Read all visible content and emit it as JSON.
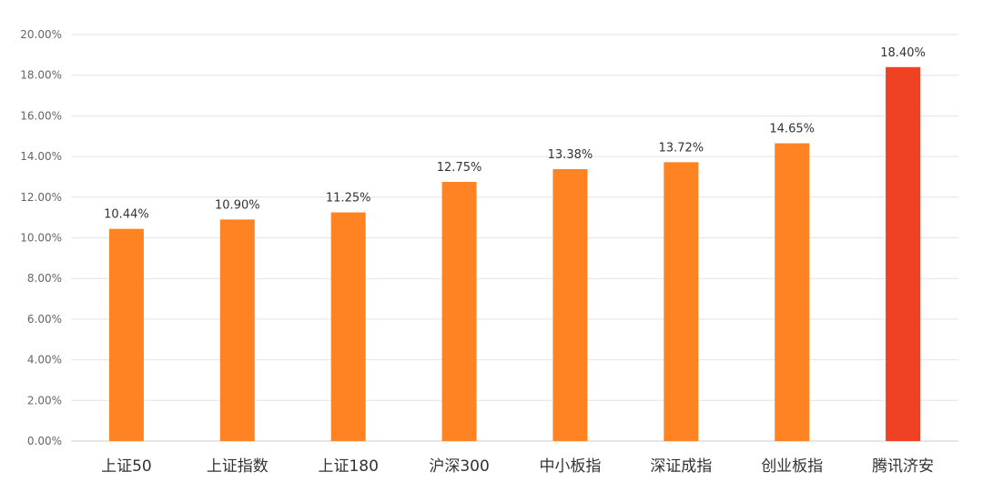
{
  "chart_data": {
    "type": "bar",
    "categories": [
      "上证50",
      "上证指数",
      "上证180",
      "沪深300",
      "中小板指",
      "深证成指",
      "创业板指",
      "腾讯济安"
    ],
    "values": [
      10.44,
      10.9,
      11.25,
      12.75,
      13.38,
      13.72,
      14.65,
      18.4
    ],
    "data_labels": [
      "10.44%",
      "10.90%",
      "11.25%",
      "12.75%",
      "13.38%",
      "13.72%",
      "14.65%",
      "18.40%"
    ],
    "ylim": [
      0,
      20
    ],
    "yticks": [
      "0.00%",
      "2.00%",
      "4.00%",
      "6.00%",
      "8.00%",
      "10.00%",
      "12.00%",
      "14.00%",
      "16.00%",
      "18.00%",
      "20.00%"
    ],
    "grid": true,
    "legend": false,
    "colors": {
      "default": "#ff8322",
      "highlight": "#f04124",
      "highlight_category": "腾讯济安"
    }
  }
}
